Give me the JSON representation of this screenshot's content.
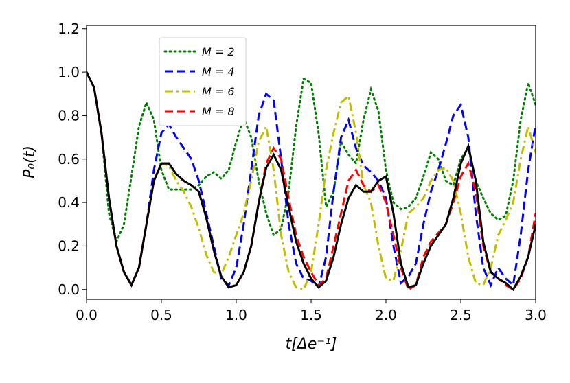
{
  "chart_data": {
    "type": "line",
    "xlabel": "t[Δe⁻¹]",
    "ylabel": "P₀(t)",
    "x": [
      0,
      0.05,
      0.1,
      0.15,
      0.2,
      0.25,
      0.3,
      0.35,
      0.4,
      0.45,
      0.5,
      0.55,
      0.6,
      0.65,
      0.7,
      0.75,
      0.8,
      0.85,
      0.9,
      0.95,
      1.0,
      1.05,
      1.1,
      1.15,
      1.2,
      1.25,
      1.3,
      1.35,
      1.4,
      1.45,
      1.5,
      1.55,
      1.6,
      1.65,
      1.7,
      1.75,
      1.8,
      1.85,
      1.9,
      1.95,
      2.0,
      2.05,
      2.1,
      2.15,
      2.2,
      2.25,
      2.3,
      2.35,
      2.4,
      2.45,
      2.5,
      2.55,
      2.6,
      2.65,
      2.7,
      2.75,
      2.8,
      2.85,
      2.9,
      2.95,
      3.0
    ],
    "series": [
      {
        "name": "M = 2",
        "color": "#007f00",
        "linestyle": "dotted",
        "values": [
          1.0,
          0.93,
          0.72,
          0.35,
          0.22,
          0.3,
          0.52,
          0.75,
          0.86,
          0.78,
          0.55,
          0.46,
          0.46,
          0.46,
          0.46,
          0.48,
          0.52,
          0.54,
          0.51,
          0.55,
          0.68,
          0.79,
          0.7,
          0.5,
          0.35,
          0.25,
          0.28,
          0.45,
          0.75,
          0.97,
          0.95,
          0.72,
          0.38,
          0.45,
          0.68,
          0.62,
          0.58,
          0.78,
          0.92,
          0.82,
          0.55,
          0.4,
          0.37,
          0.38,
          0.42,
          0.52,
          0.63,
          0.6,
          0.5,
          0.48,
          0.6,
          0.65,
          0.5,
          0.42,
          0.35,
          0.32,
          0.34,
          0.5,
          0.78,
          0.95,
          0.85
        ]
      },
      {
        "name": "M = 4",
        "color": "#0000ff",
        "linestyle": "dashed",
        "values": [
          1.0,
          0.93,
          0.72,
          0.42,
          0.2,
          0.08,
          0.02,
          0.1,
          0.3,
          0.55,
          0.72,
          0.76,
          0.7,
          0.65,
          0.6,
          0.5,
          0.35,
          0.2,
          0.05,
          0.02,
          0.1,
          0.3,
          0.55,
          0.8,
          0.9,
          0.87,
          0.6,
          0.3,
          0.12,
          0.05,
          0.04,
          0.01,
          0.15,
          0.45,
          0.7,
          0.78,
          0.65,
          0.57,
          0.54,
          0.5,
          0.42,
          0.2,
          0.03,
          0.06,
          0.12,
          0.3,
          0.45,
          0.55,
          0.67,
          0.8,
          0.85,
          0.7,
          0.35,
          0.1,
          0.02,
          0.1,
          0.05,
          0.02,
          0.25,
          0.55,
          0.76
        ]
      },
      {
        "name": "M = 6",
        "color": "#bfbf00",
        "linestyle": "dashdot",
        "values": [
          1.0,
          0.93,
          0.72,
          0.42,
          0.2,
          0.08,
          0.02,
          0.1,
          0.3,
          0.5,
          0.58,
          0.57,
          0.5,
          0.45,
          0.38,
          0.28,
          0.16,
          0.08,
          0.07,
          0.15,
          0.25,
          0.35,
          0.5,
          0.68,
          0.75,
          0.55,
          0.25,
          0.08,
          0.01,
          0.0,
          0.08,
          0.3,
          0.55,
          0.72,
          0.86,
          0.89,
          0.72,
          0.48,
          0.4,
          0.2,
          0.05,
          0.04,
          0.18,
          0.35,
          0.38,
          0.42,
          0.5,
          0.55,
          0.56,
          0.5,
          0.35,
          0.15,
          0.03,
          0.02,
          0.1,
          0.25,
          0.32,
          0.4,
          0.6,
          0.75,
          0.63
        ]
      },
      {
        "name": "M = 8",
        "color": "#ff0000",
        "linestyle": "dashed",
        "values": [
          1.0,
          0.93,
          0.72,
          0.42,
          0.2,
          0.08,
          0.02,
          0.1,
          0.3,
          0.5,
          0.58,
          0.58,
          0.53,
          0.5,
          0.48,
          0.45,
          0.33,
          0.18,
          0.06,
          0.01,
          0.02,
          0.08,
          0.2,
          0.4,
          0.58,
          0.65,
          0.6,
          0.42,
          0.25,
          0.15,
          0.08,
          0.02,
          0.05,
          0.2,
          0.35,
          0.5,
          0.55,
          0.48,
          0.45,
          0.48,
          0.4,
          0.25,
          0.1,
          0.0,
          0.02,
          0.15,
          0.22,
          0.26,
          0.3,
          0.4,
          0.52,
          0.58,
          0.45,
          0.2,
          0.08,
          0.05,
          0.02,
          0.0,
          0.05,
          0.15,
          0.35
        ]
      },
      {
        "color": "#000000",
        "linestyle": "solid",
        "values": [
          1.0,
          0.93,
          0.72,
          0.42,
          0.2,
          0.08,
          0.02,
          0.1,
          0.3,
          0.5,
          0.58,
          0.58,
          0.53,
          0.5,
          0.48,
          0.45,
          0.33,
          0.18,
          0.06,
          0.01,
          0.02,
          0.08,
          0.2,
          0.4,
          0.56,
          0.62,
          0.55,
          0.38,
          0.22,
          0.12,
          0.05,
          0.01,
          0.04,
          0.15,
          0.3,
          0.42,
          0.48,
          0.45,
          0.45,
          0.5,
          0.52,
          0.35,
          0.12,
          0.01,
          0.02,
          0.12,
          0.2,
          0.25,
          0.3,
          0.42,
          0.58,
          0.66,
          0.5,
          0.22,
          0.08,
          0.05,
          0.03,
          0.0,
          0.06,
          0.15,
          0.3
        ]
      }
    ],
    "xlim": [
      0,
      3
    ],
    "ylim": [
      -0.045,
      1.215
    ],
    "xticks": [
      {
        "value": 0,
        "label": "0.0"
      },
      {
        "value": 0.5,
        "label": "0.5"
      },
      {
        "value": 1,
        "label": "1.0"
      },
      {
        "value": 1.5,
        "label": "1.5"
      },
      {
        "value": 2,
        "label": "2.0"
      },
      {
        "value": 2.5,
        "label": "2.5"
      },
      {
        "value": 3,
        "label": "3.0"
      }
    ],
    "yticks": [
      {
        "value": 0,
        "label": "0.0"
      },
      {
        "value": 0.2,
        "label": "0.2"
      },
      {
        "value": 0.4,
        "label": "0.4"
      },
      {
        "value": 0.6,
        "label": "0.6"
      },
      {
        "value": 0.8,
        "label": "0.8"
      },
      {
        "value": 1,
        "label": "1.0"
      },
      {
        "value": 1.2,
        "label": "1.2"
      }
    ],
    "grid": false,
    "legend": "upper left"
  }
}
